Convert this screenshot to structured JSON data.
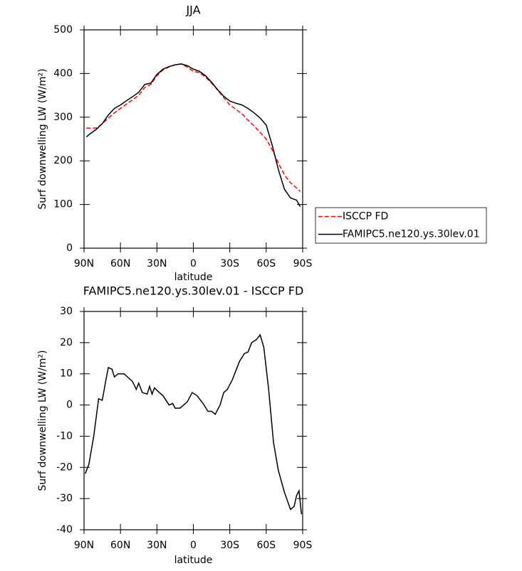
{
  "chart_data": [
    {
      "type": "line",
      "title": "JJA",
      "xlabel": "latitude",
      "ylabel": "Surf downwelling LW (W/m²)",
      "x": [
        88,
        85,
        80,
        75,
        70,
        65,
        60,
        55,
        50,
        45,
        40,
        35,
        30,
        25,
        20,
        15,
        10,
        5,
        0,
        -5,
        -10,
        -15,
        -20,
        -25,
        -30,
        -35,
        -40,
        -45,
        -50,
        -55,
        -60,
        -65,
        -70,
        -75,
        -80,
        -85,
        -88
      ],
      "series": [
        {
          "name": "ISCCP FD",
          "color": "#ff0000",
          "linestyle": "dashed",
          "values": [
            275,
            275,
            275,
            285,
            298,
            310,
            320,
            330,
            340,
            350,
            368,
            375,
            395,
            408,
            415,
            420,
            422,
            415,
            405,
            402,
            392,
            378,
            362,
            345,
            328,
            318,
            308,
            293,
            280,
            265,
            250,
            225,
            195,
            168,
            150,
            138,
            130
          ]
        },
        {
          "name": "FAMIPC5.ne120.ys.30lev.01",
          "color": "#000000",
          "linestyle": "solid",
          "values": [
            255,
            262,
            272,
            285,
            305,
            320,
            328,
            338,
            347,
            357,
            375,
            378,
            398,
            410,
            416,
            420,
            422,
            418,
            410,
            405,
            395,
            380,
            363,
            348,
            337,
            332,
            328,
            320,
            310,
            298,
            282,
            235,
            180,
            135,
            115,
            110,
            95
          ]
        }
      ],
      "xlim": [
        90,
        -90
      ],
      "xticks": [
        {
          "value": 90,
          "label": "90N"
        },
        {
          "value": 60,
          "label": "60N"
        },
        {
          "value": 30,
          "label": "30N"
        },
        0,
        {
          "value": -30,
          "label": "30S"
        },
        {
          "value": -60,
          "label": "60S"
        },
        {
          "value": -90,
          "label": "90S"
        }
      ],
      "ylim": [
        0,
        500
      ],
      "yticks": [
        0,
        100,
        200,
        300,
        400,
        500
      ],
      "legend": "right"
    },
    {
      "type": "line",
      "title": "FAMIPC5.ne120.ys.30lev.01 - ISCCP FD",
      "xlabel": "latitude",
      "ylabel": "Surf downwelling LW (W/m²)",
      "x": [
        89,
        86,
        82,
        78,
        75,
        72,
        70,
        67,
        65,
        62,
        57,
        50,
        47,
        45,
        42,
        38,
        36,
        34,
        32,
        28,
        25,
        20,
        17,
        15,
        11,
        5,
        1,
        -3,
        -8,
        -12,
        -15,
        -18,
        -22,
        -25,
        -28,
        -32,
        -35,
        -38,
        -42,
        -45,
        -48,
        -52,
        -55,
        -58,
        -62,
        -66,
        -70,
        -75,
        -80,
        -83,
        -85,
        -87,
        -89
      ],
      "series": [
        {
          "color": "#000000",
          "linestyle": "solid",
          "values": [
            -22,
            -19,
            -10,
            2,
            1.5,
            8,
            12,
            11.5,
            9,
            10,
            10,
            7.5,
            5,
            7,
            4,
            3.5,
            6,
            3.5,
            5.5,
            4,
            3,
            0,
            0.5,
            -1,
            -1,
            1,
            4,
            3,
            0.5,
            -2,
            -2,
            -3,
            0,
            4,
            5,
            8,
            11,
            14,
            16.5,
            17,
            20,
            21,
            22.5,
            18.5,
            5,
            -12,
            -21,
            -28,
            -33.5,
            -32.5,
            -29,
            -27.5,
            -35
          ]
        }
      ],
      "xlim": [
        90,
        -90
      ],
      "xticks": [
        {
          "value": 90,
          "label": "90N"
        },
        {
          "value": 60,
          "label": "60N"
        },
        {
          "value": 30,
          "label": "30N"
        },
        0,
        {
          "value": -30,
          "label": "30S"
        },
        {
          "value": -60,
          "label": "60S"
        },
        {
          "value": -90,
          "label": "90S"
        }
      ],
      "ylim": [
        -40,
        30
      ],
      "yticks": [
        -40,
        -30,
        -20,
        -10,
        0,
        10,
        20,
        30
      ]
    }
  ]
}
